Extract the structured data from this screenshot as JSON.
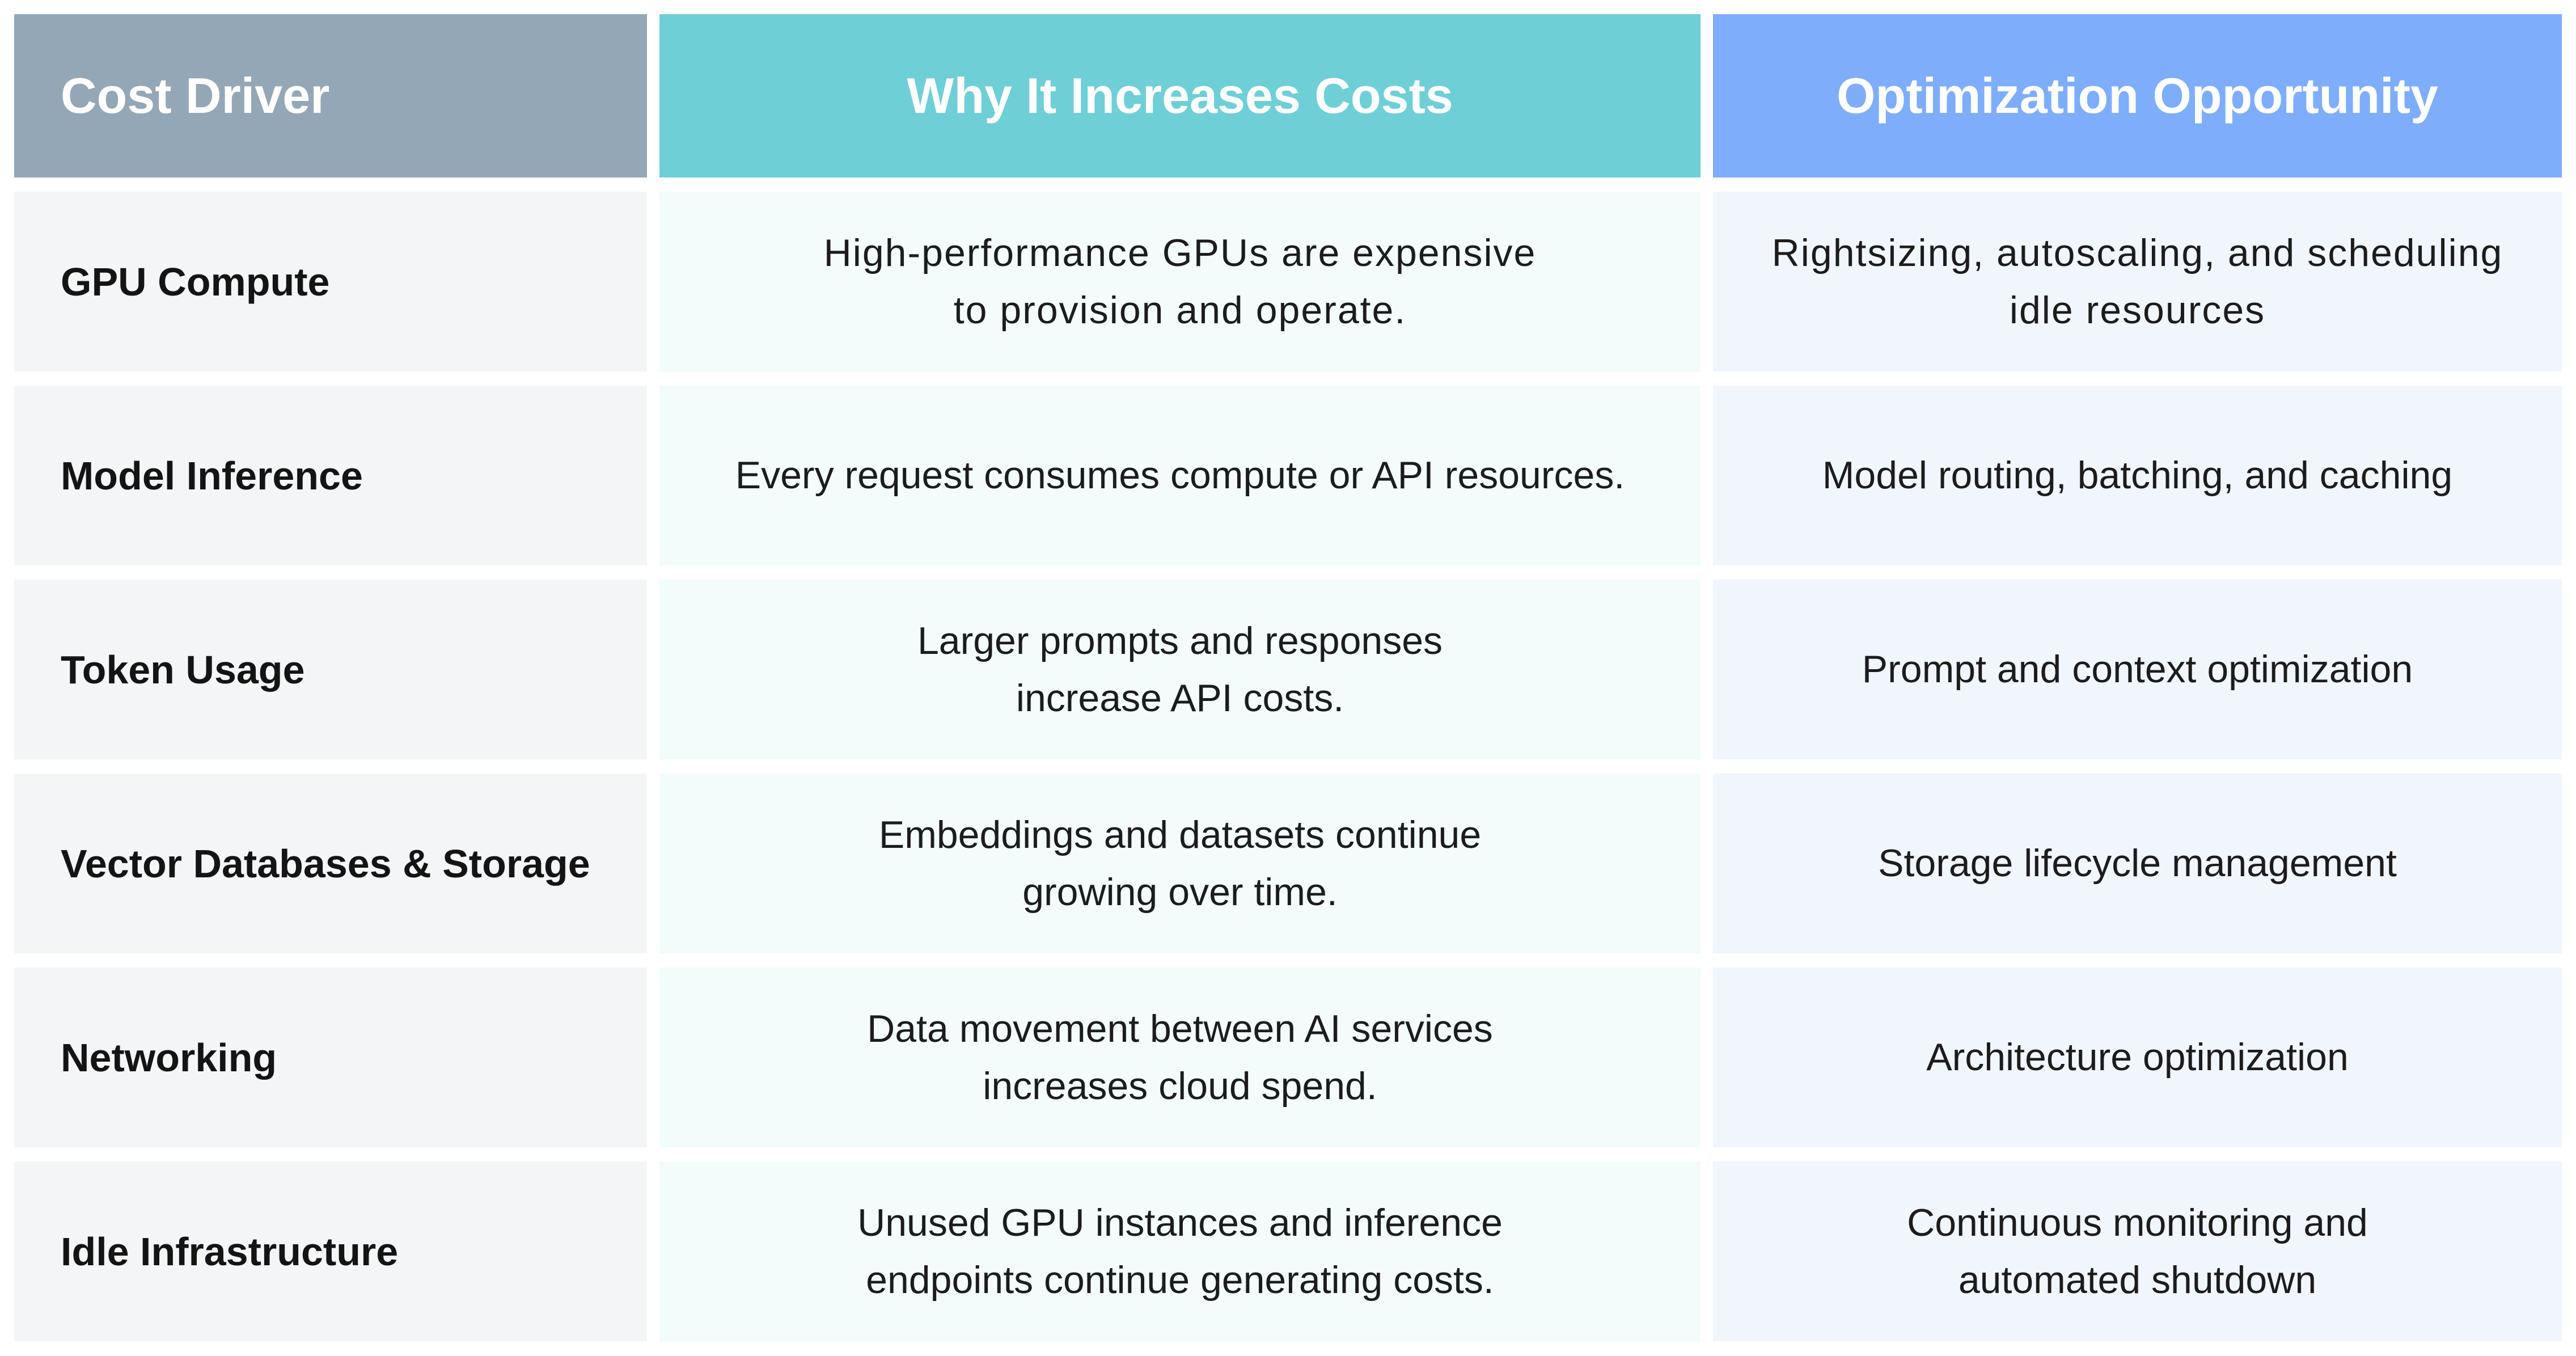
{
  "table": {
    "headers": [
      "Cost Driver",
      "Why It Increases Costs",
      "Optimization Opportunity"
    ],
    "rows": [
      {
        "driver": "GPU Compute",
        "why": [
          "High-performance GPUs are expensive",
          "to provision and operate."
        ],
        "opportunity": [
          "Rightsizing, autoscaling, and scheduling",
          "idle resources"
        ]
      },
      {
        "driver": "Model Inference",
        "why": [
          "Every request consumes compute or API resources."
        ],
        "opportunity": [
          "Model routing, batching, and caching"
        ]
      },
      {
        "driver": "Token Usage",
        "why": [
          "Larger prompts and responses",
          "increase API costs."
        ],
        "opportunity": [
          "Prompt and context optimization"
        ]
      },
      {
        "driver": "Vector Databases & Storage",
        "why": [
          "Embeddings and datasets continue",
          "growing over time."
        ],
        "opportunity": [
          "Storage lifecycle management"
        ]
      },
      {
        "driver": "Networking",
        "why": [
          "Data movement between AI services",
          "increases cloud spend."
        ],
        "opportunity": [
          "Architecture optimization"
        ]
      },
      {
        "driver": "Idle Infrastructure",
        "why": [
          "Unused GPU instances and inference",
          "endpoints continue generating costs."
        ],
        "opportunity": [
          "Continuous monitoring and",
          "automated shutdown"
        ]
      }
    ]
  }
}
